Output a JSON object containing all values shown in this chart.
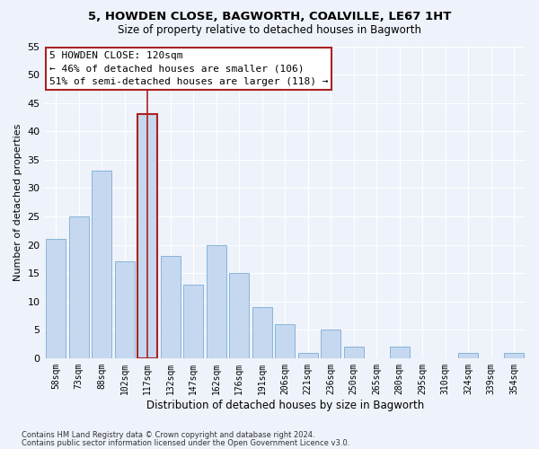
{
  "title": "5, HOWDEN CLOSE, BAGWORTH, COALVILLE, LE67 1HT",
  "subtitle": "Size of property relative to detached houses in Bagworth",
  "xlabel": "Distribution of detached houses by size in Bagworth",
  "ylabel": "Number of detached properties",
  "bar_color": "#c5d8f0",
  "bar_edge_color": "#7aadd4",
  "highlight_color": "#aa2222",
  "background_color": "#eef2fa",
  "grid_color": "#d8e4f0",
  "categories": [
    "58sqm",
    "73sqm",
    "88sqm",
    "102sqm",
    "117sqm",
    "132sqm",
    "147sqm",
    "162sqm",
    "176sqm",
    "191sqm",
    "206sqm",
    "221sqm",
    "236sqm",
    "250sqm",
    "265sqm",
    "280sqm",
    "295sqm",
    "310sqm",
    "324sqm",
    "339sqm",
    "354sqm"
  ],
  "values": [
    21,
    25,
    33,
    17,
    43,
    18,
    13,
    20,
    15,
    9,
    6,
    1,
    5,
    2,
    0,
    2,
    0,
    0,
    1,
    0,
    1
  ],
  "ylim": [
    0,
    55
  ],
  "yticks": [
    0,
    5,
    10,
    15,
    20,
    25,
    30,
    35,
    40,
    45,
    50,
    55
  ],
  "highlight_bar_index": 4,
  "annotation_title": "5 HOWDEN CLOSE: 120sqm",
  "annotation_line1": "← 46% of detached houses are smaller (106)",
  "annotation_line2": "51% of semi-detached houses are larger (118) →",
  "footer1": "Contains HM Land Registry data © Crown copyright and database right 2024.",
  "footer2": "Contains public sector information licensed under the Open Government Licence v3.0."
}
